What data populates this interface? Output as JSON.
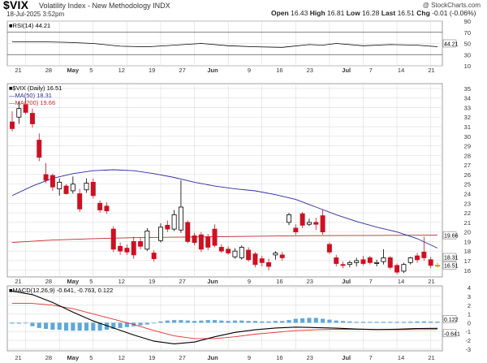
{
  "header": {
    "symbol": "$VIX",
    "name": "Volatility Index - New Methodology  INDX",
    "date": "18-Jul-2025 3:52pm",
    "open_label": "Open",
    "open": "16.43",
    "high_label": "High",
    "high": "16.81",
    "low_label": "Low",
    "low": "16.28",
    "last_label": "Last",
    "last": "16.51",
    "chg_label": "Chg",
    "chg": "-0.01 (-0.06%)",
    "watermark": "@ StockCharts.com"
  },
  "rsi_panel": {
    "legend": "RSI(14) 44.21",
    "levels": [
      10,
      30,
      50,
      70,
      90
    ],
    "last_tag": "44.21"
  },
  "price_panel": {
    "legend_main": "$VIX (Daily) 16.51",
    "legend_ma50": "MA(50) 18.31",
    "legend_ma200": "MA(200) 19.66",
    "yticks": [
      16,
      17,
      18,
      19,
      20,
      21,
      22,
      23,
      24,
      25,
      26,
      27,
      28,
      29,
      30,
      31,
      32,
      33,
      34,
      35
    ],
    "ma200_tag": "19.66",
    "ma50_tag": "18.31",
    "last_tag": "16.51"
  },
  "macd_panel": {
    "legend": "MACD(12,26,9) -0.641, -0.763, 0.122",
    "yticks": [
      -3,
      -2,
      -1,
      0,
      1,
      2,
      3,
      4
    ],
    "hist_tag": "0.122",
    "macd_tag": "-0.641"
  },
  "xaxis": {
    "ticks": [
      "21",
      "28",
      "May",
      "5",
      "12",
      "19",
      "27",
      "Jun",
      "9",
      "16",
      "23",
      "Jul",
      "7",
      "14",
      "21"
    ]
  },
  "colors": {
    "up_candle": "#000000",
    "down_candle": "#cc1122",
    "ma50": "#2b2b9e",
    "ma200": "#c0282c",
    "macd_line": "#000000",
    "signal_line": "#e0302c",
    "histogram": "#5fa8d8"
  },
  "chart_data": {
    "type": "candlestick",
    "candles": [
      {
        "o": 31.5,
        "h": 32.6,
        "l": 30.5,
        "c": 30.8
      },
      {
        "o": 32.0,
        "h": 33.6,
        "l": 31.3,
        "c": 32.9
      },
      {
        "o": 33.3,
        "h": 34.0,
        "l": 32.3,
        "c": 32.5
      },
      {
        "o": 32.4,
        "h": 32.9,
        "l": 30.9,
        "c": 31.3
      },
      {
        "o": 29.6,
        "h": 30.3,
        "l": 27.4,
        "c": 27.8
      },
      {
        "o": 26.0,
        "h": 27.2,
        "l": 25.1,
        "c": 25.4
      },
      {
        "o": 25.9,
        "h": 26.1,
        "l": 24.3,
        "c": 24.7
      },
      {
        "o": 24.5,
        "h": 25.6,
        "l": 23.8,
        "c": 25.2
      },
      {
        "o": 24.8,
        "h": 25.0,
        "l": 23.9,
        "c": 24.0
      },
      {
        "o": 24.3,
        "h": 25.8,
        "l": 24.0,
        "c": 25.0
      },
      {
        "o": 24.0,
        "h": 24.5,
        "l": 22.1,
        "c": 22.4
      },
      {
        "o": 24.4,
        "h": 25.6,
        "l": 24.1,
        "c": 25.1
      },
      {
        "o": 25.2,
        "h": 25.6,
        "l": 23.5,
        "c": 23.8
      },
      {
        "o": 23.0,
        "h": 23.3,
        "l": 22.0,
        "c": 22.3
      },
      {
        "o": 22.7,
        "h": 23.1,
        "l": 21.9,
        "c": 22.2
      },
      {
        "o": 20.3,
        "h": 20.6,
        "l": 17.9,
        "c": 18.2
      },
      {
        "o": 18.5,
        "h": 18.9,
        "l": 17.6,
        "c": 18.0
      },
      {
        "o": 18.3,
        "h": 18.7,
        "l": 17.6,
        "c": 17.9
      },
      {
        "o": 19.0,
        "h": 19.5,
        "l": 17.2,
        "c": 17.6
      },
      {
        "o": 19.0,
        "h": 19.4,
        "l": 18.2,
        "c": 18.5
      },
      {
        "o": 18.2,
        "h": 20.4,
        "l": 18.0,
        "c": 20.1
      },
      {
        "o": 17.8,
        "h": 18.1,
        "l": 16.9,
        "c": 17.2
      },
      {
        "o": 19.1,
        "h": 20.9,
        "l": 18.9,
        "c": 20.5
      },
      {
        "o": 20.7,
        "h": 21.2,
        "l": 20.0,
        "c": 20.3
      },
      {
        "o": 20.3,
        "h": 22.3,
        "l": 20.1,
        "c": 21.8
      },
      {
        "o": 20.2,
        "h": 25.4,
        "l": 19.9,
        "c": 22.6
      },
      {
        "o": 21.0,
        "h": 21.2,
        "l": 18.8,
        "c": 19.0
      },
      {
        "o": 19.6,
        "h": 19.9,
        "l": 18.6,
        "c": 18.9
      },
      {
        "o": 19.7,
        "h": 20.0,
        "l": 17.9,
        "c": 18.2
      },
      {
        "o": 19.5,
        "h": 19.8,
        "l": 18.1,
        "c": 18.4
      },
      {
        "o": 20.3,
        "h": 20.8,
        "l": 18.4,
        "c": 18.6
      },
      {
        "o": 18.4,
        "h": 18.7,
        "l": 17.8,
        "c": 18.0
      },
      {
        "o": 18.2,
        "h": 18.5,
        "l": 17.6,
        "c": 17.8
      },
      {
        "o": 17.4,
        "h": 18.3,
        "l": 17.2,
        "c": 18.0
      },
      {
        "o": 17.3,
        "h": 18.6,
        "l": 17.1,
        "c": 18.4
      },
      {
        "o": 18.1,
        "h": 18.4,
        "l": 16.9,
        "c": 17.1
      },
      {
        "o": 17.7,
        "h": 17.9,
        "l": 16.3,
        "c": 16.6
      },
      {
        "o": 17.2,
        "h": 17.5,
        "l": 16.4,
        "c": 16.8
      },
      {
        "o": 16.8,
        "h": 17.2,
        "l": 16.0,
        "c": 16.4
      },
      {
        "o": 17.6,
        "h": 18.0,
        "l": 17.1,
        "c": 17.8
      },
      {
        "o": 17.6,
        "h": 17.9,
        "l": 17.0,
        "c": 17.3
      },
      {
        "o": 21.0,
        "h": 22.0,
        "l": 20.7,
        "c": 21.8
      },
      {
        "o": 20.4,
        "h": 20.8,
        "l": 19.7,
        "c": 20.0
      },
      {
        "o": 21.9,
        "h": 22.1,
        "l": 20.4,
        "c": 20.7
      },
      {
        "o": 20.8,
        "h": 21.4,
        "l": 20.6,
        "c": 21.0
      },
      {
        "o": 21.0,
        "h": 21.5,
        "l": 20.2,
        "c": 20.8
      },
      {
        "o": 21.7,
        "h": 22.3,
        "l": 19.7,
        "c": 20.0
      },
      {
        "o": 18.7,
        "h": 18.9,
        "l": 17.7,
        "c": 17.9
      },
      {
        "o": 17.3,
        "h": 17.6,
        "l": 16.4,
        "c": 16.7
      },
      {
        "o": 16.6,
        "h": 16.9,
        "l": 16.2,
        "c": 16.5
      },
      {
        "o": 16.6,
        "h": 17.0,
        "l": 16.3,
        "c": 16.8
      },
      {
        "o": 16.8,
        "h": 17.3,
        "l": 16.4,
        "c": 17.0
      },
      {
        "o": 17.1,
        "h": 17.5,
        "l": 16.5,
        "c": 16.7
      },
      {
        "o": 17.3,
        "h": 17.5,
        "l": 16.6,
        "c": 16.8
      },
      {
        "o": 16.7,
        "h": 17.1,
        "l": 16.4,
        "c": 16.8
      },
      {
        "o": 16.9,
        "h": 18.2,
        "l": 16.6,
        "c": 17.3
      },
      {
        "o": 17.3,
        "h": 17.5,
        "l": 16.1,
        "c": 16.3
      },
      {
        "o": 16.5,
        "h": 16.7,
        "l": 15.6,
        "c": 15.8
      },
      {
        "o": 15.9,
        "h": 16.8,
        "l": 15.7,
        "c": 16.6
      },
      {
        "o": 16.8,
        "h": 17.4,
        "l": 16.6,
        "c": 17.3
      },
      {
        "o": 17.5,
        "h": 17.8,
        "l": 16.8,
        "c": 17.1
      },
      {
        "o": 17.9,
        "h": 19.5,
        "l": 17.0,
        "c": 17.3
      },
      {
        "o": 17.1,
        "h": 17.4,
        "l": 16.2,
        "c": 16.5
      },
      {
        "o": 16.43,
        "h": 16.81,
        "l": 16.28,
        "c": 16.51
      }
    ],
    "ma50": [
      [
        0,
        23.8
      ],
      [
        3,
        24.8
      ],
      [
        6,
        25.6
      ],
      [
        9,
        26.1
      ],
      [
        12,
        26.4
      ],
      [
        15,
        26.5
      ],
      [
        18,
        26.4
      ],
      [
        21,
        26.1
      ],
      [
        24,
        25.7
      ],
      [
        27,
        25.2
      ],
      [
        30,
        24.8
      ],
      [
        33,
        24.5
      ],
      [
        36,
        24.3
      ],
      [
        39,
        23.9
      ],
      [
        42,
        23.4
      ],
      [
        45,
        22.6
      ],
      [
        48,
        21.8
      ],
      [
        51,
        21.1
      ],
      [
        54,
        20.5
      ],
      [
        57,
        20.0
      ],
      [
        60,
        19.3
      ],
      [
        63,
        18.31
      ]
    ],
    "ma200": [
      [
        0,
        18.9
      ],
      [
        6,
        19.15
      ],
      [
        12,
        19.3
      ],
      [
        18,
        19.4
      ],
      [
        24,
        19.45
      ],
      [
        30,
        19.5
      ],
      [
        36,
        19.55
      ],
      [
        42,
        19.6
      ],
      [
        48,
        19.62
      ],
      [
        54,
        19.64
      ],
      [
        60,
        19.65
      ],
      [
        63,
        19.66
      ]
    ],
    "rsi": [
      [
        0,
        53
      ],
      [
        4,
        53
      ],
      [
        8,
        52
      ],
      [
        12,
        50
      ],
      [
        16,
        45
      ],
      [
        20,
        44
      ],
      [
        24,
        47
      ],
      [
        28,
        50
      ],
      [
        32,
        46
      ],
      [
        36,
        44
      ],
      [
        40,
        43
      ],
      [
        44,
        48
      ],
      [
        46,
        47
      ],
      [
        48,
        50
      ],
      [
        52,
        46
      ],
      [
        56,
        48
      ],
      [
        60,
        47
      ],
      [
        63,
        44.21
      ]
    ],
    "macd": {
      "macd": [
        [
          0,
          3.6
        ],
        [
          3,
          3.2
        ],
        [
          6,
          2.3
        ],
        [
          9,
          1.2
        ],
        [
          12,
          0.2
        ],
        [
          15,
          -0.6
        ],
        [
          18,
          -1.4
        ],
        [
          21,
          -2.1
        ],
        [
          24,
          -2.4
        ],
        [
          27,
          -2.2
        ],
        [
          30,
          -1.6
        ],
        [
          33,
          -1.1
        ],
        [
          36,
          -0.8
        ],
        [
          39,
          -0.6
        ],
        [
          42,
          -0.5
        ],
        [
          45,
          -0.55
        ],
        [
          48,
          -0.62
        ],
        [
          51,
          -0.72
        ],
        [
          54,
          -0.78
        ],
        [
          57,
          -0.74
        ],
        [
          60,
          -0.66
        ],
        [
          63,
          -0.641
        ]
      ],
      "signal": [
        [
          0,
          2.2
        ],
        [
          3,
          2.2
        ],
        [
          6,
          2.0
        ],
        [
          9,
          1.6
        ],
        [
          12,
          1.0
        ],
        [
          15,
          0.4
        ],
        [
          18,
          -0.2
        ],
        [
          21,
          -0.9
        ],
        [
          24,
          -1.5
        ],
        [
          27,
          -1.8
        ],
        [
          30,
          -1.8
        ],
        [
          33,
          -1.6
        ],
        [
          36,
          -1.3
        ],
        [
          39,
          -1.1
        ],
        [
          42,
          -0.9
        ],
        [
          45,
          -0.8
        ],
        [
          48,
          -0.75
        ],
        [
          51,
          -0.75
        ],
        [
          54,
          -0.78
        ],
        [
          57,
          -0.79
        ],
        [
          60,
          -0.78
        ],
        [
          63,
          -0.763
        ]
      ],
      "hist": [
        [
          0,
          -0.1
        ],
        [
          1,
          -0.1
        ],
        [
          2,
          0.0
        ],
        [
          3,
          -0.4
        ],
        [
          4,
          -0.6
        ],
        [
          5,
          -0.7
        ],
        [
          6,
          -0.8
        ],
        [
          7,
          -0.8
        ],
        [
          8,
          -0.9
        ],
        [
          9,
          -0.9
        ],
        [
          10,
          -0.9
        ],
        [
          11,
          -0.9
        ],
        [
          12,
          -0.9
        ],
        [
          13,
          -0.9
        ],
        [
          14,
          -0.8
        ],
        [
          15,
          -0.7
        ],
        [
          16,
          -0.6
        ],
        [
          17,
          -0.5
        ],
        [
          18,
          -0.4
        ],
        [
          19,
          -0.3
        ],
        [
          20,
          -0.2
        ],
        [
          21,
          0.0
        ],
        [
          22,
          0.15
        ],
        [
          23,
          0.25
        ],
        [
          24,
          0.3
        ],
        [
          25,
          0.3
        ],
        [
          26,
          0.25
        ],
        [
          27,
          0.2
        ],
        [
          28,
          0.25
        ],
        [
          29,
          0.3
        ],
        [
          30,
          0.3
        ],
        [
          31,
          0.25
        ],
        [
          32,
          0.2
        ],
        [
          33,
          0.25
        ],
        [
          34,
          0.25
        ],
        [
          35,
          0.2
        ],
        [
          36,
          0.2
        ],
        [
          37,
          0.15
        ],
        [
          38,
          0.15
        ],
        [
          39,
          0.2
        ],
        [
          40,
          0.2
        ],
        [
          41,
          0.3
        ],
        [
          42,
          0.45
        ],
        [
          43,
          0.5
        ],
        [
          44,
          0.55
        ],
        [
          45,
          0.55
        ],
        [
          46,
          0.45
        ],
        [
          47,
          0.35
        ],
        [
          48,
          0.25
        ],
        [
          49,
          0.2
        ],
        [
          50,
          0.15
        ],
        [
          51,
          0.1
        ],
        [
          52,
          0.1
        ],
        [
          53,
          0.1
        ],
        [
          54,
          0.1
        ],
        [
          55,
          0.1
        ],
        [
          56,
          0.1
        ],
        [
          57,
          0.1
        ],
        [
          58,
          0.1
        ],
        [
          59,
          0.12
        ],
        [
          60,
          0.15
        ],
        [
          61,
          0.15
        ],
        [
          62,
          0.13
        ],
        [
          63,
          0.122
        ]
      ]
    },
    "rsi_range": [
      10,
      90
    ],
    "price_range": [
      15.3,
      35.5
    ],
    "macd_range": [
      -3.2,
      4.2
    ]
  }
}
